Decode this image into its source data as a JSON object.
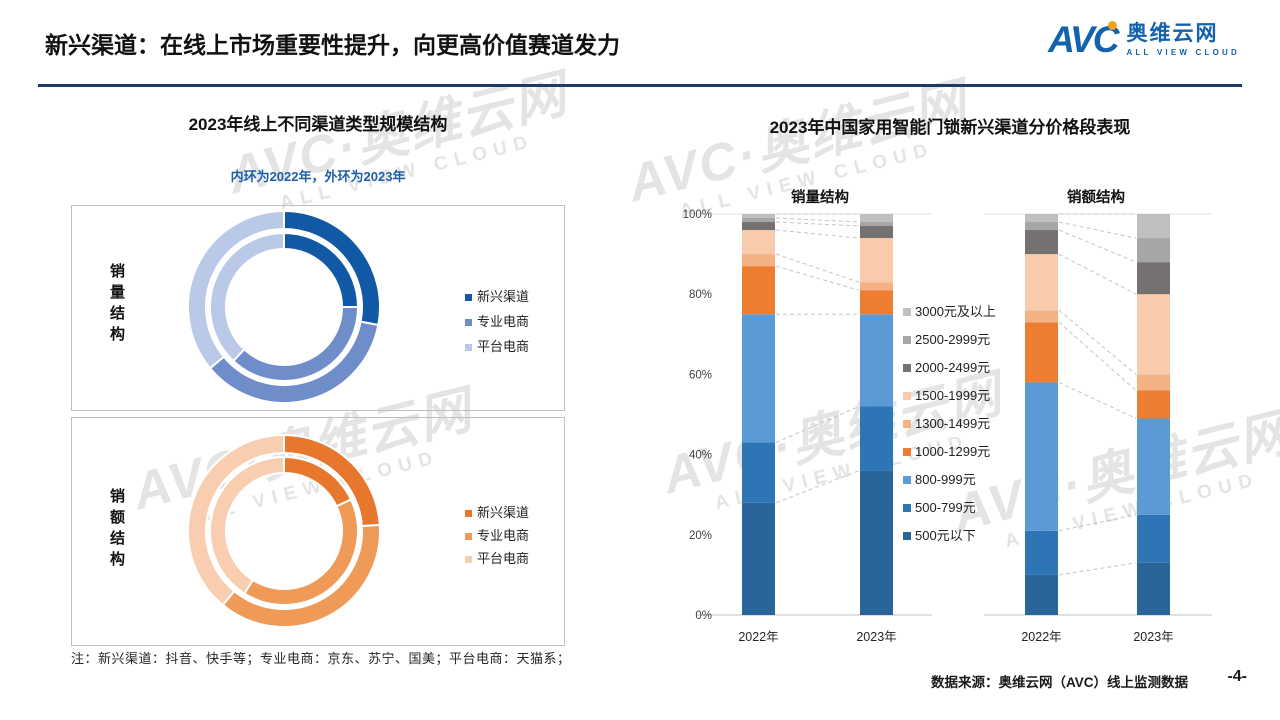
{
  "header": {
    "title": "新兴渠道：在线上市场重要性提升，向更高价值赛道发力",
    "logo": {
      "mark": "AVC",
      "name": "奥维云网",
      "tagline": "ALL VIEW CLOUD"
    }
  },
  "watermark": {
    "mark": "AVC",
    "name": "奥维云网",
    "tagline": "ALL VIEW CLOUD"
  },
  "colors": {
    "brand_blue": "#1262AC",
    "logo_dot_orange": "#F5A21B",
    "header_rule_navy": "#1F3864",
    "subtitle_blue": "#1F5FA8",
    "watermark_gray": "#E4E4E4",
    "box_border_gray": "#BFBFBF"
  },
  "left_panel": {
    "title": "2023年线上不同渠道类型规模结构",
    "subtitle": "内环为2022年，外环为2023年",
    "note": "注：新兴渠道：抖音、快手等；专业电商：京东、苏宁、国美；平台电商：天猫系；"
  },
  "right_panel": {
    "title": "2023年中国家用智能门锁新兴渠道分价格段表现",
    "group_labels": [
      "销量结构",
      "销额结构"
    ]
  },
  "footer": {
    "source": "数据来源：奥维云网（AVC）线上监测数据",
    "page": "-4-"
  },
  "chart_data": [
    {
      "id": "donut-sales-volume",
      "type": "pie",
      "subtype": "double-ring-donut",
      "title": "销量结构",
      "legend": [
        "新兴渠道",
        "专业电商",
        "平台电商"
      ],
      "colors": [
        "#1159A5",
        "#6E8DC9",
        "#B9C9E7"
      ],
      "unit": "%",
      "rings": [
        {
          "name": "2022年（内环）",
          "values": [
            25,
            37,
            38
          ]
        },
        {
          "name": "2023年（外环）",
          "values": [
            28,
            36,
            36
          ]
        }
      ]
    },
    {
      "id": "donut-sales-amount",
      "type": "pie",
      "subtype": "double-ring-donut",
      "title": "销额结构",
      "legend": [
        "新兴渠道",
        "专业电商",
        "平台电商"
      ],
      "colors": [
        "#E8772E",
        "#F09A58",
        "#F8CDB0"
      ],
      "unit": "%",
      "rings": [
        {
          "name": "2022年（内环）",
          "values": [
            18,
            41,
            41
          ]
        },
        {
          "name": "2023年（外环）",
          "values": [
            24,
            37,
            39
          ]
        }
      ]
    },
    {
      "id": "price-band-stacked",
      "type": "bar",
      "stacked": true,
      "groups": [
        "销量结构",
        "销额结构"
      ],
      "categories": [
        "2022年",
        "2023年",
        "2022年",
        "2023年"
      ],
      "y_axis": {
        "min": 0,
        "max": 100,
        "tick_values": [
          0,
          20,
          40,
          60,
          80,
          100
        ],
        "tick_labels": [
          "0%",
          "20%",
          "40%",
          "60%",
          "80%",
          "100%"
        ]
      },
      "unit": "%",
      "series_bottom_to_top": [
        {
          "name": "500元以下",
          "color": "#2A6599",
          "values": [
            28,
            36,
            10,
            13
          ]
        },
        {
          "name": "500-799元",
          "color": "#2E75B6",
          "values": [
            15,
            16,
            11,
            12
          ]
        },
        {
          "name": "800-999元",
          "color": "#5B9BD5",
          "values": [
            32,
            23,
            37,
            24
          ]
        },
        {
          "name": "1000-1299元",
          "color": "#ED7D31",
          "values": [
            12,
            6,
            15,
            7
          ]
        },
        {
          "name": "1300-1499元",
          "color": "#F4B183",
          "values": [
            3,
            2,
            3,
            4
          ]
        },
        {
          "name": "1500-1999元",
          "color": "#F8CBAD",
          "values": [
            6,
            11,
            14,
            20
          ]
        },
        {
          "name": "2000-2499元",
          "color": "#767171",
          "values": [
            2,
            3,
            6,
            8
          ]
        },
        {
          "name": "2500-2999元",
          "color": "#A6A6A6",
          "values": [
            1,
            1,
            2,
            6
          ]
        },
        {
          "name": "3000元及以上",
          "color": "#BFBFBF",
          "values": [
            1,
            2,
            2,
            6
          ]
        }
      ]
    }
  ]
}
